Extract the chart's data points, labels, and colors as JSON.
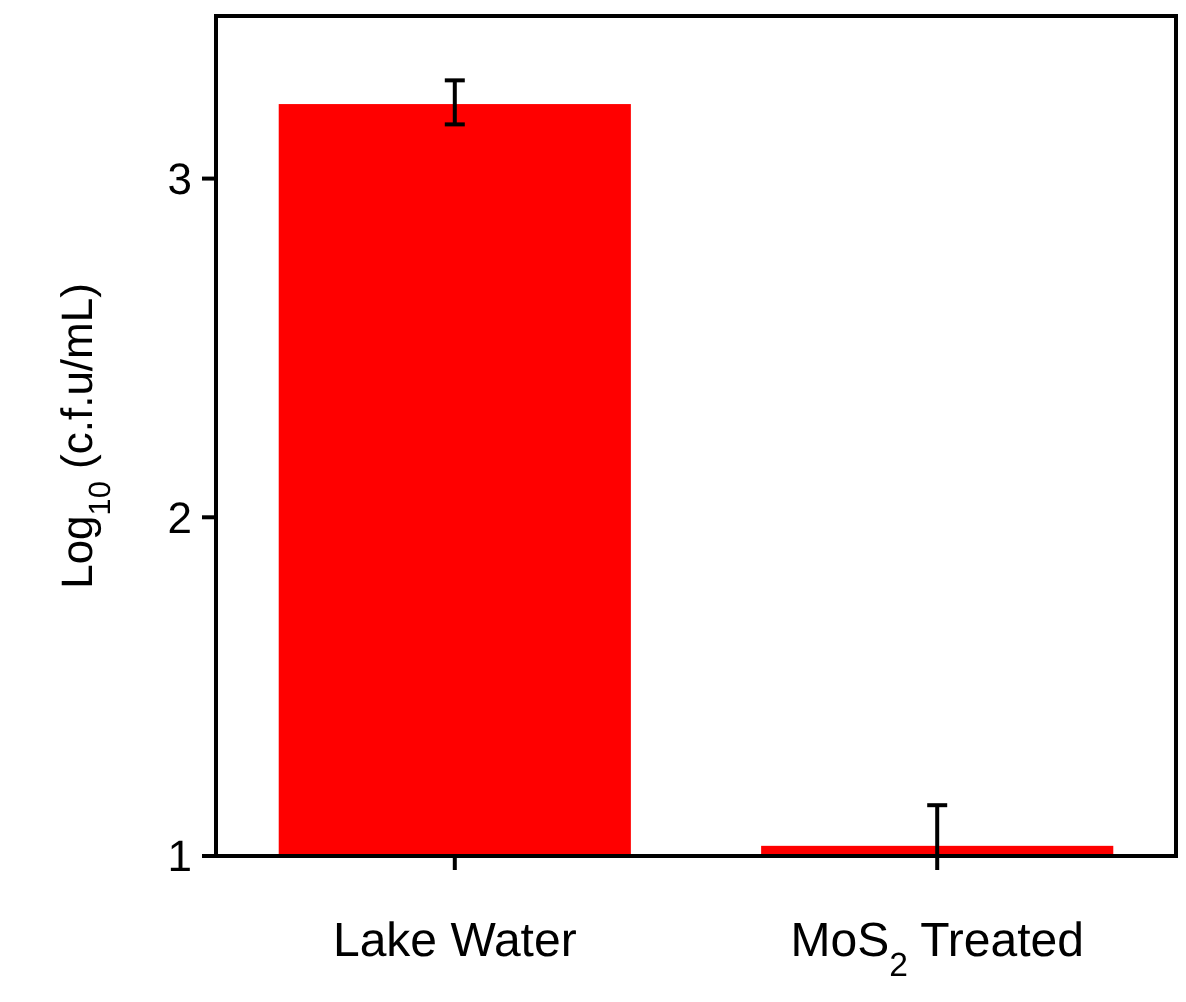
{
  "chart_data": {
    "type": "bar",
    "categories": [
      "Lake Water",
      "MoS$_{2}$ Treated"
    ],
    "values": [
      3.22,
      1.03
    ],
    "errors": [
      [
        3.16,
        3.29
      ],
      [
        1.0,
        1.15
      ]
    ],
    "color": "#ff0000",
    "ylabel": "Log$_{10}$ (c.f.u/mL)",
    "ylim": [
      1,
      3.48
    ],
    "yticks": [
      1,
      2,
      3
    ],
    "grid": false
  }
}
